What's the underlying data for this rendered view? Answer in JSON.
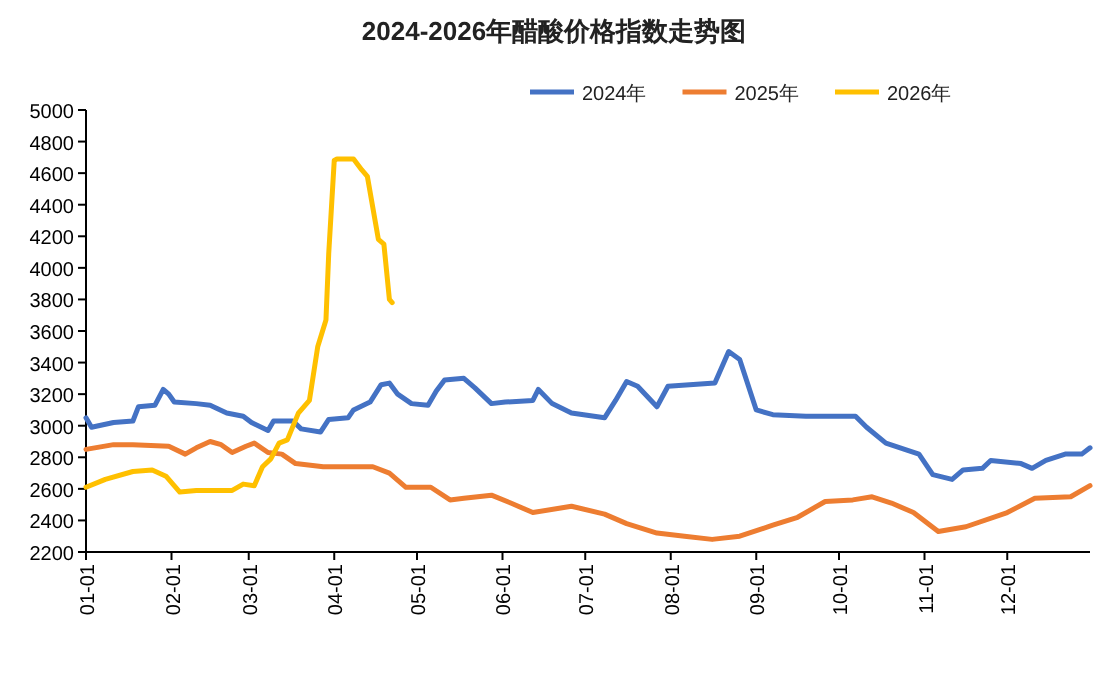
{
  "chart_data": {
    "type": "line",
    "title": "2024-2026年醋酸价格指数走势图",
    "xlim": [
      "--01-01",
      "--12-31"
    ],
    "xticks": [
      {
        "value": "--01-01",
        "label": "01-01"
      },
      {
        "value": "--02-01",
        "label": "02-01"
      },
      {
        "value": "--03-01",
        "label": "03-01"
      },
      {
        "value": "--04-01",
        "label": "04-01"
      },
      {
        "value": "--05-01",
        "label": "05-01"
      },
      {
        "value": "--06-01",
        "label": "06-01"
      },
      {
        "value": "--07-01",
        "label": "07-01"
      },
      {
        "value": "--08-01",
        "label": "08-01"
      },
      {
        "value": "--09-01",
        "label": "09-01"
      },
      {
        "value": "--10-01",
        "label": "10-01"
      },
      {
        "value": "--11-01",
        "label": "11-01"
      },
      {
        "value": "--12-01",
        "label": "12-01"
      }
    ],
    "ylim": [
      2200,
      5000
    ],
    "yticks": [
      2200,
      2400,
      2600,
      2800,
      3000,
      3200,
      3400,
      3600,
      3800,
      4000,
      4200,
      4400,
      4600,
      4800,
      5000
    ],
    "grid": false,
    "legend": "top",
    "marker": "none",
    "line_style": "solid",
    "series": [
      {
        "name": "2024年",
        "color": "#4472c4",
        "x": [
          "--01-01",
          "--01-03",
          "--01-11",
          "--01-18",
          "--01-20",
          "--01-26",
          "--01-29",
          "--01-31",
          "--02-02",
          "--02-10",
          "--02-15",
          "--02-21",
          "--02-27",
          "--03-02",
          "--03-08",
          "--03-10",
          "--03-17",
          "--03-20",
          "--03-27",
          "--03-30",
          "--04-06",
          "--04-08",
          "--04-14",
          "--04-18",
          "--04-21",
          "--04-24",
          "--04-29",
          "--05-05",
          "--05-08",
          "--05-11",
          "--05-18",
          "--05-22",
          "--05-28",
          "--06-02",
          "--06-12",
          "--06-14",
          "--06-19",
          "--06-26",
          "--07-08",
          "--07-12",
          "--07-16",
          "--07-20",
          "--07-27",
          "--07-31",
          "--08-17",
          "--08-22",
          "--08-26",
          "--09-01",
          "--09-07",
          "--09-19",
          "--10-07",
          "--10-11",
          "--10-18",
          "--10-30",
          "--11-04",
          "--11-11",
          "--11-15",
          "--11-22",
          "--11-25",
          "--12-06",
          "--12-10",
          "--12-15",
          "--12-22",
          "--12-28",
          "--12-31"
        ],
        "values": [
          3050,
          2990,
          3020,
          3030,
          3120,
          3130,
          3230,
          3200,
          3150,
          3140,
          3130,
          3080,
          3060,
          3020,
          2970,
          3030,
          3030,
          2980,
          2960,
          3040,
          3050,
          3100,
          3150,
          3260,
          3270,
          3200,
          3140,
          3130,
          3220,
          3290,
          3300,
          3240,
          3140,
          3150,
          3160,
          3230,
          3140,
          3080,
          3050,
          3160,
          3280,
          3250,
          3120,
          3250,
          3270,
          3470,
          3420,
          3100,
          3070,
          3060,
          3060,
          2990,
          2890,
          2820,
          2690,
          2660,
          2720,
          2730,
          2780,
          2760,
          2730,
          2780,
          2820,
          2820,
          2860
        ]
      },
      {
        "name": "2025年",
        "color": "#ed7d31",
        "x": [
          "--01-01",
          "--01-11",
          "--01-18",
          "--01-31",
          "--02-06",
          "--02-10",
          "--02-15",
          "--02-19",
          "--02-23",
          "--02-28",
          "--03-03",
          "--03-08",
          "--03-13",
          "--03-18",
          "--03-28",
          "--04-05",
          "--04-15",
          "--04-21",
          "--04-27",
          "--05-06",
          "--05-13",
          "--05-18",
          "--05-28",
          "--06-04",
          "--06-12",
          "--06-26",
          "--07-08",
          "--07-16",
          "--07-27",
          "--08-06",
          "--08-16",
          "--08-26",
          "--09-07",
          "--09-16",
          "--09-26",
          "--10-06",
          "--10-13",
          "--10-20",
          "--10-28",
          "--11-06",
          "--11-16",
          "--12-01",
          "--12-11",
          "--12-24",
          "--12-31"
        ],
        "values": [
          2850,
          2880,
          2880,
          2870,
          2820,
          2860,
          2900,
          2880,
          2830,
          2870,
          2890,
          2830,
          2820,
          2760,
          2740,
          2740,
          2740,
          2700,
          2610,
          2610,
          2530,
          2540,
          2560,
          2510,
          2450,
          2490,
          2440,
          2380,
          2320,
          2300,
          2280,
          2300,
          2370,
          2420,
          2520,
          2530,
          2550,
          2510,
          2450,
          2330,
          2360,
          2450,
          2540,
          2550,
          2620
        ]
      },
      {
        "name": "2026年",
        "color": "#ffc000",
        "x": [
          "--01-01",
          "--01-08",
          "--01-18",
          "--01-25",
          "--01-30",
          "--02-04",
          "--02-10",
          "--02-23",
          "--02-27",
          "--03-03",
          "--03-06",
          "--03-09",
          "--03-12",
          "--03-15",
          "--03-19",
          "--03-23",
          "--03-26",
          "--03-29",
          "--03-30",
          "--04-01",
          "--04-02",
          "--04-08",
          "--04-11",
          "--04-13",
          "--04-17",
          "--04-19",
          "--04-21",
          "--04-22"
        ],
        "values": [
          2610,
          2660,
          2710,
          2720,
          2680,
          2580,
          2590,
          2590,
          2630,
          2620,
          2740,
          2790,
          2890,
          2910,
          3080,
          3160,
          3500,
          3670,
          4090,
          4680,
          4690,
          4690,
          4620,
          4580,
          4180,
          4150,
          3800,
          3780
        ]
      }
    ]
  }
}
